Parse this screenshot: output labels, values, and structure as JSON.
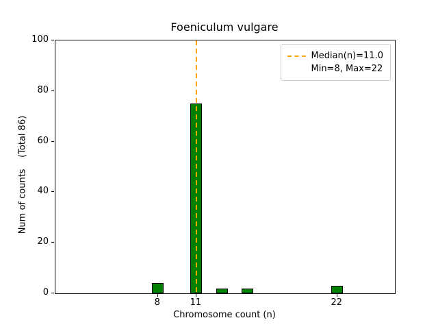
{
  "chart_data": {
    "type": "bar",
    "title": "Foeniculum vulgare",
    "xlabel": "Chromosome count (n)",
    "ylabel": "Num of counts    (Total 86)",
    "total_label": "(Total 86)",
    "total": 86,
    "xlim": [
      0,
      26.5
    ],
    "ylim": [
      0,
      100
    ],
    "x_ticks": [
      8,
      11,
      22
    ],
    "y_ticks": [
      0,
      20,
      40,
      60,
      80,
      100
    ],
    "categories": [
      8,
      11,
      13,
      15,
      22
    ],
    "values": [
      4,
      75,
      2,
      2,
      3
    ],
    "bars": [
      {
        "x": 8,
        "count": 4
      },
      {
        "x": 11,
        "count": 75
      },
      {
        "x": 13,
        "count": 2
      },
      {
        "x": 15,
        "count": 2
      },
      {
        "x": 22,
        "count": 3
      }
    ],
    "bar_width": 0.9,
    "bar_color": "#008000",
    "bar_edge_color": "#000000",
    "median_line": {
      "x": 11,
      "color": "#FFA500",
      "style": "dashed"
    },
    "legend": {
      "line1": "Median(n)=11.0",
      "line2": "Min=8, Max=22",
      "position": "upper right"
    },
    "grid": false
  }
}
